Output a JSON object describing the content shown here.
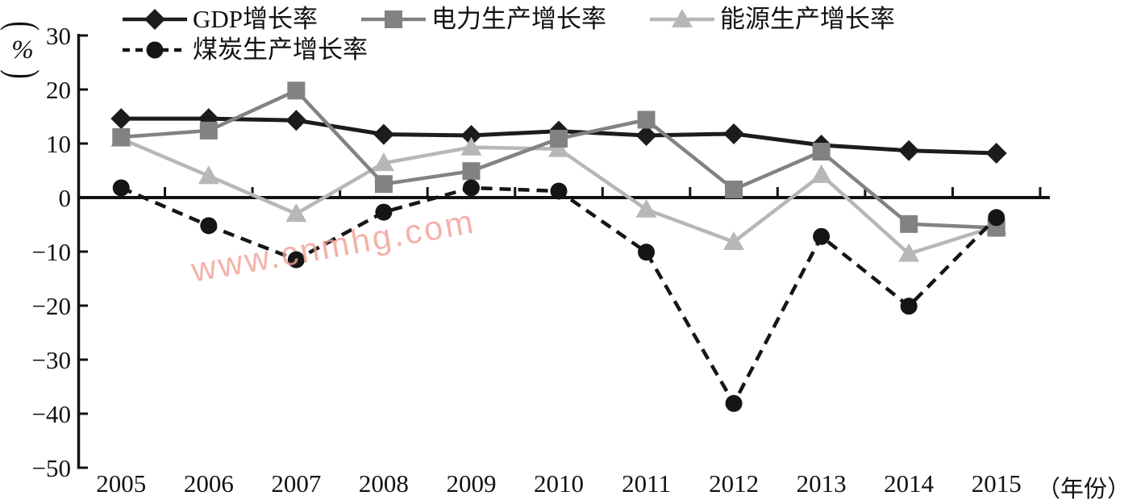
{
  "y_axis": {
    "unit_open": "(",
    "unit": "%",
    "unit_close": ")"
  },
  "x_axis": {
    "unit_label": "（年份）"
  },
  "watermark": {
    "text": "www.cnmhg.com",
    "color": "#f2a096"
  },
  "chart_data": {
    "type": "line",
    "title": "",
    "xlabel": "年份",
    "ylabel": "%",
    "categories": [
      "2005",
      "2006",
      "2007",
      "2008",
      "2009",
      "2010",
      "2011",
      "2012",
      "2013",
      "2014",
      "2015"
    ],
    "y_ticks": [
      30,
      20,
      10,
      0,
      -10,
      -20,
      -30,
      -40,
      -50
    ],
    "ylim": [
      -50,
      30
    ],
    "grid": false,
    "legend_position": "top-left",
    "series": [
      {
        "id": "gdp",
        "name": "GDP增长率",
        "marker": "diamond",
        "color": "#1c1c1c",
        "line": "solid",
        "values": [
          14.6,
          14.6,
          14.3,
          11.7,
          11.5,
          12.3,
          11.5,
          11.8,
          9.7,
          8.7,
          8.2
        ]
      },
      {
        "id": "electricity",
        "name": "电力生产增长率",
        "marker": "square",
        "color": "#828282",
        "line": "solid",
        "values": [
          11.2,
          12.4,
          19.8,
          2.5,
          4.9,
          10.9,
          14.4,
          1.5,
          8.5,
          -4.9,
          -5.6
        ]
      },
      {
        "id": "energy",
        "name": "能源生产增长率",
        "marker": "triangle",
        "color": "#b7b7b7",
        "line": "solid",
        "values": [
          10.9,
          4.0,
          -3.0,
          6.4,
          9.3,
          9.0,
          -2.2,
          -8.2,
          4.2,
          -10.4,
          -5.3
        ]
      },
      {
        "id": "coal",
        "name": "煤炭生产增长率",
        "marker": "circle",
        "color": "#151515",
        "line": "dashed",
        "values": [
          1.8,
          -5.2,
          -11.5,
          -2.7,
          1.8,
          1.2,
          -10.1,
          -38.1,
          -7.2,
          -20.1,
          -3.7
        ]
      }
    ],
    "draw_order": [
      0,
      2,
      1,
      3
    ]
  }
}
